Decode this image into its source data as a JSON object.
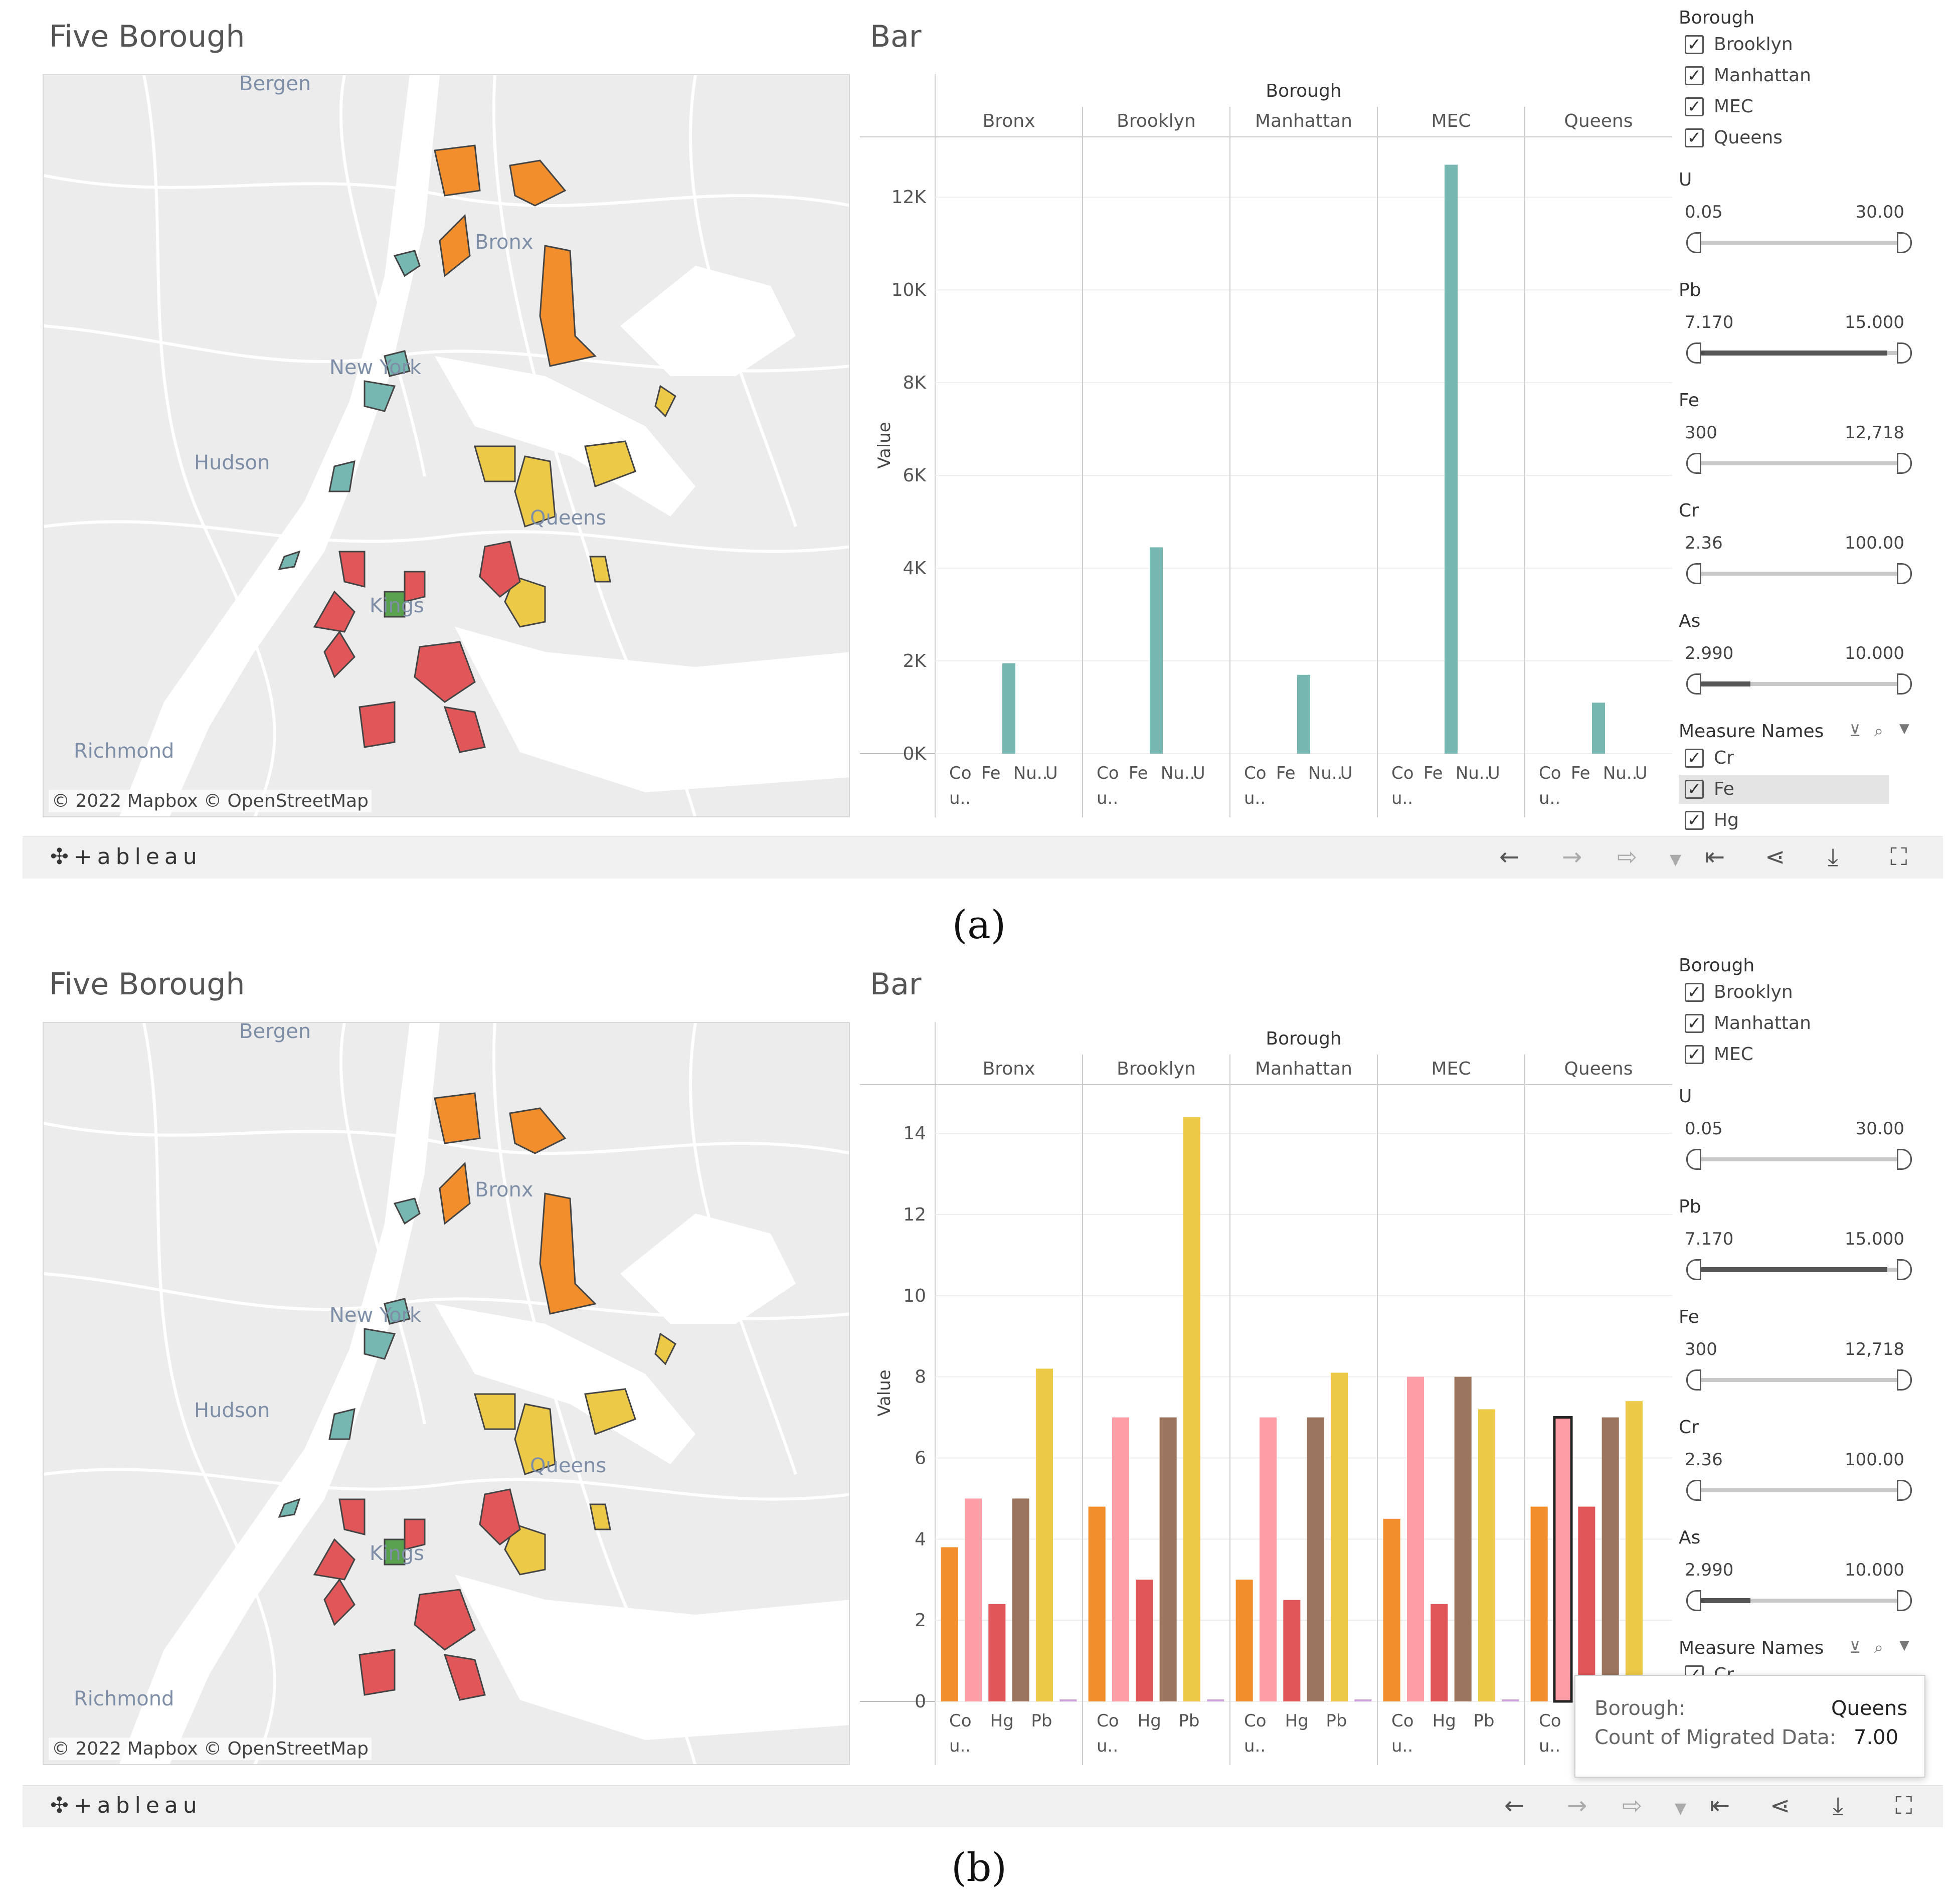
{
  "panels": [
    {
      "id": "a",
      "caption": "(a)",
      "map": {
        "title": "Five Borough",
        "labels": {
          "bergen": "Bergen",
          "bronx": "Bronx",
          "new_york": "New York",
          "hudson": "Hudson",
          "queens": "Queens",
          "kings": "Kings",
          "richmond": "Richmond"
        },
        "attribution": "© 2022 Mapbox © OpenStreetMap"
      },
      "chart_data": {
        "type": "bar",
        "title": "Bar",
        "column_header": "Borough",
        "ylabel": "Value",
        "ylim": [
          0,
          13300
        ],
        "yticks": [
          0,
          2000,
          4000,
          6000,
          8000,
          10000,
          12000
        ],
        "ytick_labels": [
          "0K",
          "2K",
          "4K",
          "6K",
          "8K",
          "10K",
          "12K"
        ],
        "categories": [
          "Bronx",
          "Brooklyn",
          "Manhattan",
          "MEC",
          "Queens"
        ],
        "x_labels": [
          "Co",
          "Fe",
          "Nu..",
          "U"
        ],
        "x_sublabel": "u..",
        "series": [
          {
            "name": "Fe",
            "color": "#76b7b2",
            "values": [
              1950,
              4450,
              1700,
              12700,
              1100
            ]
          }
        ]
      },
      "filters": {
        "borough": {
          "title": "Borough",
          "items": [
            "Brooklyn",
            "Manhattan",
            "MEC",
            "Queens"
          ]
        },
        "ranges": [
          {
            "name": "U",
            "min": "0.05",
            "max": "30.00",
            "low": 0,
            "high": 1
          },
          {
            "name": "Pb",
            "min": "7.170",
            "max": "15.000",
            "low": 0,
            "high": 0.92
          },
          {
            "name": "Fe",
            "min": "300",
            "max": "12,718",
            "low": 0,
            "high": 1
          },
          {
            "name": "Cr",
            "min": "2.36",
            "max": "100.00",
            "low": 0,
            "high": 1
          },
          {
            "name": "As",
            "min": "2.990",
            "max": "10.000",
            "low": 0,
            "high": 0.27
          }
        ],
        "measure_names": {
          "title": "Measure Names",
          "items": [
            "Cr",
            "Fe",
            "Hg"
          ]
        }
      }
    },
    {
      "id": "b",
      "caption": "(b)",
      "map": {
        "title": "Five Borough",
        "labels": {
          "bergen": "Bergen",
          "bronx": "Bronx",
          "new_york": "New York",
          "hudson": "Hudson",
          "queens": "Queens",
          "kings": "Kings",
          "richmond": "Richmond"
        },
        "attribution": "© 2022 Mapbox © OpenStreetMap"
      },
      "chart_data": {
        "type": "bar",
        "title": "Bar",
        "column_header": "Borough",
        "ylabel": "Value",
        "ylim": [
          0,
          15.2
        ],
        "yticks": [
          0,
          2,
          4,
          6,
          8,
          10,
          12,
          14
        ],
        "ytick_labels": [
          "0",
          "2",
          "4",
          "6",
          "8",
          "10",
          "12",
          "14"
        ],
        "categories": [
          "Bronx",
          "Brooklyn",
          "Manhattan",
          "MEC",
          "Queens"
        ],
        "x_labels": [
          "Co",
          "Hg",
          "Pb"
        ],
        "x_sublabel": "u..",
        "series": [
          {
            "name": "Co",
            "color": "#f28e2b",
            "values": [
              3.8,
              4.8,
              3.0,
              4.5,
              4.8
            ]
          },
          {
            "name": "Cr",
            "color": "#ff9da7",
            "values": [
              5.0,
              7.0,
              7.0,
              8.0,
              7.0
            ]
          },
          {
            "name": "Hg",
            "color": "#e15759",
            "values": [
              2.4,
              3.0,
              2.5,
              2.4,
              4.8
            ]
          },
          {
            "name": "Nu..",
            "color": "#9c755f",
            "values": [
              5.0,
              7.0,
              7.0,
              8.0,
              7.0
            ]
          },
          {
            "name": "Pb",
            "color": "#edc948",
            "values": [
              8.2,
              14.4,
              8.1,
              7.2,
              7.4
            ]
          },
          {
            "name": "U",
            "color": "#c9a3d6",
            "values": [
              0.05,
              0.05,
              0.05,
              0.05,
              0.05
            ]
          }
        ]
      },
      "filters": {
        "borough": {
          "title": "Borough",
          "items": [
            "Brooklyn",
            "Manhattan",
            "MEC"
          ]
        },
        "ranges": [
          {
            "name": "U",
            "min": "0.05",
            "max": "30.00",
            "low": 0,
            "high": 1
          },
          {
            "name": "Pb",
            "min": "7.170",
            "max": "15.000",
            "low": 0,
            "high": 0.92
          },
          {
            "name": "Fe",
            "min": "300",
            "max": "12,718",
            "low": 0,
            "high": 1
          },
          {
            "name": "Cr",
            "min": "2.36",
            "max": "100.00",
            "low": 0,
            "high": 1
          },
          {
            "name": "As",
            "min": "2.990",
            "max": "10.000",
            "low": 0,
            "high": 0.27
          }
        ],
        "measure_names": {
          "title": "Measure Names",
          "items": [
            "Cr"
          ]
        }
      },
      "tooltip": {
        "borough_key": "Borough:",
        "borough_val": "Queens",
        "count_key": "Count of Migrated Data:",
        "count_val": "7.00"
      }
    }
  ],
  "toolbar": {
    "logo": "+ableau",
    "icons": [
      "undo-icon",
      "redo-icon",
      "revert-icon",
      "reset-icon",
      "share-icon",
      "download-icon",
      "fullscreen-icon"
    ]
  },
  "colors": {
    "bronx_orange": "#f28e2b",
    "manhattan_teal": "#76b7b2",
    "queens_yellow": "#edc948",
    "brooklyn_red": "#e15759",
    "mec_green": "#59a14f"
  }
}
